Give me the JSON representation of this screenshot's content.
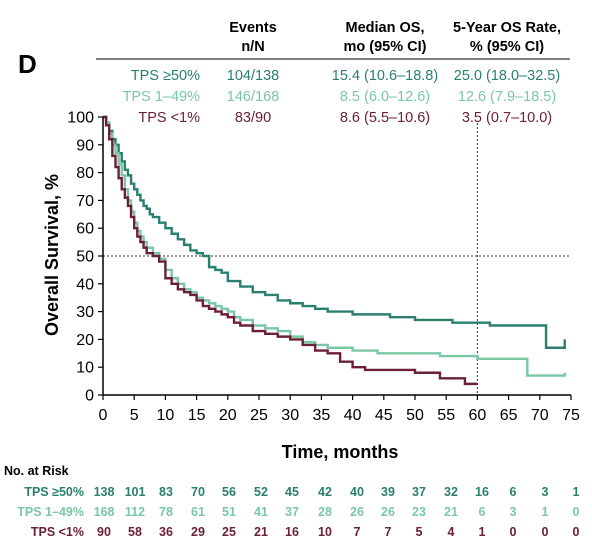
{
  "panel_label": "D",
  "table": {
    "headers": [
      {
        "line1": "Events",
        "line2": "n/N"
      },
      {
        "line1": "Median OS,",
        "line2": "mo (95% CI)"
      },
      {
        "line1": "5-Year OS Rate,",
        "line2": "% (95% CI)"
      }
    ],
    "rows": [
      {
        "group": "TPS ≥50%",
        "events": "104/138",
        "median": "15.4 (10.6–18.8)",
        "rate": "25.0 (18.0–32.5)"
      },
      {
        "group": "TPS 1–49%",
        "events": "146/168",
        "median": "8.5 (6.0–12.6)",
        "rate": "12.6 (7.9–18.5)"
      },
      {
        "group": "TPS <1%",
        "events": "83/90",
        "median": "8.6 (5.5–10.6)",
        "rate": "3.5 (0.7–10.0)"
      }
    ]
  },
  "risk_table": {
    "title": "No. at Risk",
    "rows": [
      {
        "group": "TPS ≥50%",
        "values": [
          "138",
          "101",
          "83",
          "70",
          "56",
          "52",
          "45",
          "42",
          "40",
          "39",
          "37",
          "32",
          "16",
          "6",
          "3",
          "1"
        ]
      },
      {
        "group": "TPS 1–49%",
        "values": [
          "168",
          "112",
          "78",
          "61",
          "51",
          "41",
          "37",
          "28",
          "26",
          "26",
          "23",
          "21",
          "6",
          "3",
          "1",
          "0"
        ]
      },
      {
        "group": "TPS <1%",
        "values": [
          "90",
          "58",
          "36",
          "29",
          "25",
          "21",
          "16",
          "10",
          "7",
          "7",
          "5",
          "4",
          "1",
          "0",
          "0",
          "0"
        ]
      }
    ]
  },
  "colors": {
    "tps50": "#2a7f6f",
    "tps149": "#7ac7a4",
    "tps1": "#6b2038",
    "axis": "#000000",
    "ref": "#555555"
  },
  "chart_data": {
    "type": "line",
    "step": true,
    "xlabel": "Time, months",
    "ylabel": "Overall Survival, %",
    "xlim": [
      0,
      75
    ],
    "ylim": [
      0,
      100
    ],
    "xticks": [
      0,
      5,
      10,
      15,
      20,
      25,
      30,
      35,
      40,
      45,
      50,
      55,
      60,
      65,
      70,
      75
    ],
    "yticks": [
      0,
      10,
      20,
      30,
      40,
      50,
      60,
      70,
      80,
      90,
      100
    ],
    "reference_lines": {
      "horizontal_y": 50,
      "vertical_x": 60
    },
    "series": [
      {
        "name": "TPS ≥50%",
        "color": "#2a7f6f",
        "x": [
          0,
          0.5,
          1,
          1.5,
          2,
          2.5,
          3,
          3.5,
          4,
          4.5,
          5,
          5.5,
          6,
          6.5,
          7,
          7.5,
          8,
          9,
          10,
          11,
          12,
          13,
          14,
          15,
          16,
          17,
          18,
          19,
          20,
          22,
          24,
          26,
          28,
          30,
          32,
          34,
          36,
          38,
          40,
          42,
          44,
          46,
          48,
          50,
          52,
          54,
          56,
          58,
          60,
          62,
          64,
          66,
          68,
          70,
          71,
          72,
          73,
          74
        ],
        "y": [
          100,
          98,
          95,
          92,
          90,
          87,
          84,
          81,
          79,
          76,
          74,
          72,
          70,
          68,
          67,
          65,
          64,
          62,
          60,
          58,
          56,
          54,
          52,
          51,
          50,
          46,
          45,
          44,
          41,
          39,
          37,
          36,
          34,
          33,
          32,
          31,
          30,
          30,
          29,
          29,
          29,
          28,
          28,
          27,
          27,
          27,
          26,
          26,
          26,
          25,
          25,
          25,
          25,
          25,
          17,
          17,
          17,
          20
        ]
      },
      {
        "name": "TPS 1–49%",
        "color": "#7ac7a4",
        "x": [
          0,
          0.5,
          1,
          1.5,
          2,
          2.5,
          3,
          3.5,
          4,
          4.5,
          5,
          5.5,
          6,
          6.5,
          7,
          8,
          9,
          10,
          11,
          12,
          13,
          14,
          15,
          16,
          17,
          18,
          19,
          20,
          21,
          22,
          24,
          26,
          28,
          30,
          32,
          34,
          36,
          38,
          40,
          42,
          44,
          46,
          48,
          50,
          52,
          54,
          56,
          58,
          60,
          62,
          64,
          66,
          68,
          70,
          72,
          73,
          74
        ],
        "y": [
          100,
          98,
          94,
          90,
          87,
          83,
          79,
          74,
          70,
          66,
          62,
          59,
          57,
          55,
          53,
          51,
          49,
          45,
          42,
          40,
          38,
          37,
          35,
          34,
          33,
          32,
          31,
          30,
          28,
          27,
          25,
          24,
          23,
          21,
          19,
          18,
          17,
          17,
          16,
          16,
          15,
          15,
          15,
          15,
          15,
          14,
          14,
          14,
          13,
          13,
          13,
          13,
          7,
          7,
          7,
          7,
          8
        ]
      },
      {
        "name": "TPS <1%",
        "color": "#6b2038",
        "x": [
          0,
          0.5,
          1,
          1.5,
          2,
          2.5,
          3,
          3.5,
          4,
          4.5,
          5,
          5.5,
          6,
          6.5,
          7,
          8,
          9,
          10,
          11,
          12,
          13,
          14,
          15,
          16,
          17,
          18,
          19,
          20,
          21,
          22,
          24,
          26,
          28,
          30,
          32,
          34,
          36,
          38,
          40,
          42,
          44,
          46,
          48,
          50,
          52,
          54,
          56,
          58,
          59,
          60
        ],
        "y": [
          100,
          97,
          92,
          86,
          82,
          78,
          74,
          71,
          68,
          64,
          60,
          57,
          55,
          53,
          51,
          50,
          48,
          42,
          40,
          38,
          37,
          36,
          34,
          32,
          31,
          30,
          29,
          28,
          26,
          25,
          23,
          22,
          21,
          20,
          18,
          16,
          15,
          12,
          10,
          9,
          9,
          9,
          9,
          8,
          8,
          6,
          6,
          4,
          4,
          4
        ]
      }
    ]
  }
}
